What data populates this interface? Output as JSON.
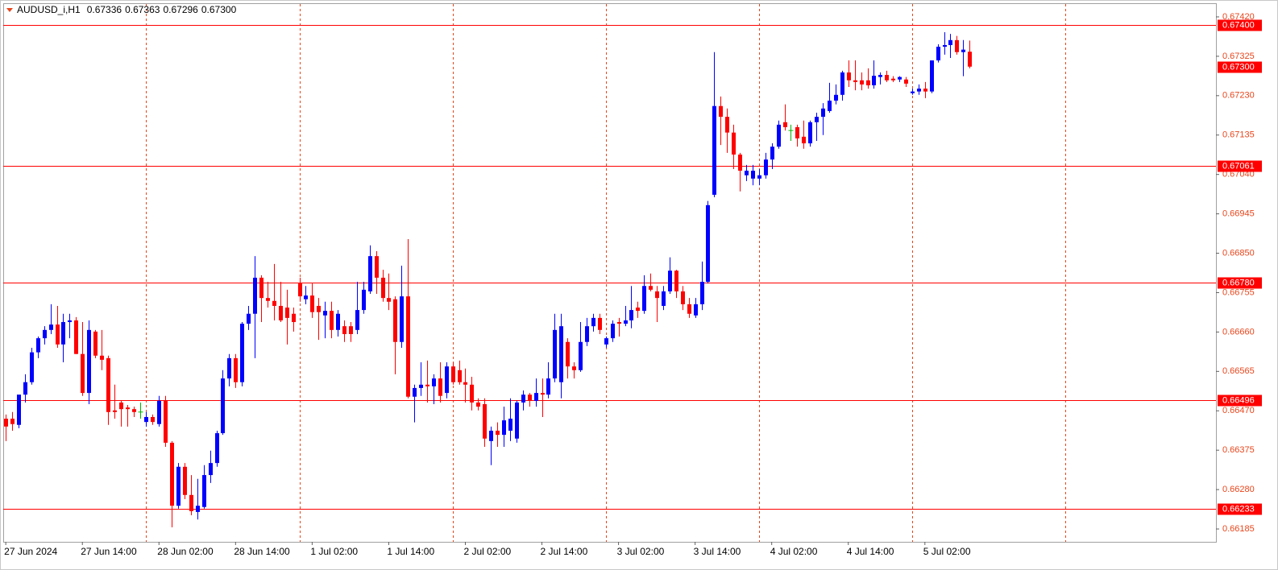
{
  "chart_data": {
    "type": "candlestick",
    "symbol": "AUDUSD_i,H1",
    "quote": [
      {
        "value": 0.67336,
        "label": "0.67336"
      },
      {
        "value": 0.67363,
        "label": "0.67363"
      },
      {
        "value": 0.67296,
        "label": "0.67296"
      },
      {
        "value": 0.673,
        "label": "0.67300"
      }
    ],
    "up_color": "#0000ff",
    "down_color": "#ff0000",
    "doji_color": "#00b400",
    "level_color": "#ff0000",
    "separator_color": "#e8461c",
    "period_separators": true,
    "ylim": [
      0.66154,
      0.67451
    ],
    "xlim": [
      -0.4,
      189.6
    ],
    "yticks": [
      {
        "value": 0.6742,
        "label": "0.67420"
      },
      0.67325,
      {
        "value": 0.6723,
        "label": "0.67230"
      },
      0.67135,
      {
        "value": 0.6704,
        "label": "0.67040"
      },
      0.66945,
      {
        "value": 0.6685,
        "label": "0.66850"
      },
      0.66755,
      {
        "value": 0.6666,
        "label": "0.66660"
      },
      0.66565,
      {
        "value": 0.6647,
        "label": "0.66470"
      },
      0.66375,
      {
        "value": 0.6628,
        "label": "0.66280"
      },
      0.66185
    ],
    "xticks": [
      {
        "value": 0,
        "label": "27 Jun 2024"
      },
      {
        "value": 12,
        "label": "27 Jun 14:00"
      },
      {
        "value": 24,
        "label": "28 Jun 02:00"
      },
      {
        "value": 36,
        "label": "28 Jun 14:00"
      },
      {
        "value": 48,
        "label": "1 Jul 02:00"
      },
      {
        "value": 60,
        "label": "1 Jul 14:00"
      },
      {
        "value": 72,
        "label": "2 Jul 02:00"
      },
      {
        "value": 84,
        "label": "2 Jul 14:00"
      },
      {
        "value": 96,
        "label": "3 Jul 02:00"
      },
      {
        "value": 108,
        "label": "3 Jul 14:00"
      },
      {
        "value": 120,
        "label": "4 Jul 02:00"
      },
      {
        "value": 132,
        "label": "4 Jul 14:00"
      },
      {
        "value": 144,
        "label": "5 Jul 02:00"
      }
    ],
    "levels": [
      {
        "value": 0.674,
        "label": "0.67400"
      },
      {
        "value": 0.673,
        "label": "0.67300"
      },
      {
        "value": 0.67061,
        "label": "0.67061"
      },
      {
        "value": 0.6678,
        "label": "0.66780"
      },
      {
        "value": 0.66496,
        "label": "0.66496"
      },
      {
        "value": 0.66233,
        "label": "0.66233"
      }
    ],
    "level_lines": [
      0,
      2,
      3,
      4,
      5
    ],
    "ohlc": [
      [
        0.66451,
        0.66461,
        0.66397,
        0.66432
      ],
      [
        0.66451,
        0.66467,
        0.66422,
        0.66438
      ],
      [
        0.66436,
        0.665,
        0.66428,
        0.66509
      ],
      [
        0.66509,
        0.66558,
        0.6649,
        0.66539
      ],
      [
        0.66539,
        0.66622,
        0.66533,
        0.66611
      ],
      [
        0.66611,
        0.66649,
        0.66597,
        0.66645
      ],
      [
        0.66645,
        0.66674,
        0.6663,
        0.66665
      ],
      [
        0.66665,
        0.66727,
        0.66655,
        0.66678
      ],
      [
        0.66678,
        0.66723,
        0.66622,
        0.6663
      ],
      [
        0.6663,
        0.66704,
        0.66587,
        0.66684
      ],
      [
        0.66684,
        0.66704,
        0.66645,
        0.66688
      ],
      [
        0.66688,
        0.66696,
        0.66607,
        0.66607
      ],
      [
        0.66607,
        0.66684,
        0.66506,
        0.66513
      ],
      [
        0.66513,
        0.66688,
        0.66486,
        0.66665
      ],
      [
        0.66661,
        0.66665,
        0.66597,
        0.66603
      ],
      [
        0.66603,
        0.66665,
        0.66568,
        0.66593
      ],
      [
        0.66597,
        0.66603,
        0.66436,
        0.66467
      ],
      [
        0.66471,
        0.66533,
        0.66451,
        0.66467
      ],
      [
        0.6649,
        0.66494,
        0.66432,
        0.66474
      ],
      [
        0.66478,
        0.66484,
        0.66432,
        0.66474
      ],
      [
        0.66474,
        0.6648,
        0.66455,
        0.66467
      ],
      [
        0.66467,
        0.6649,
        0.66451,
        0.66467
      ],
      [
        0.66443,
        0.66467,
        0.66432,
        0.66455
      ],
      [
        0.66455,
        0.66461,
        0.66436,
        0.66443
      ],
      [
        0.66438,
        0.66506,
        0.66432,
        0.66494
      ],
      [
        0.66494,
        0.66506,
        0.66383,
        0.66393
      ],
      [
        0.66393,
        0.66397,
        0.66189,
        0.66241
      ],
      [
        0.66241,
        0.66344,
        0.66234,
        0.66335
      ],
      [
        0.66335,
        0.66344,
        0.66257,
        0.66267
      ],
      [
        0.66267,
        0.66315,
        0.66218,
        0.66228
      ],
      [
        0.66226,
        0.66306,
        0.66208,
        0.66241
      ],
      [
        0.66238,
        0.66339,
        0.66234,
        0.66315
      ],
      [
        0.66315,
        0.66374,
        0.66296,
        0.66344
      ],
      [
        0.66344,
        0.66422,
        0.66335,
        0.66416
      ],
      [
        0.66416,
        0.66568,
        0.66412,
        0.66548
      ],
      [
        0.66548,
        0.66607,
        0.66529,
        0.66597
      ],
      [
        0.66597,
        0.66607,
        0.66525,
        0.66539
      ],
      [
        0.66539,
        0.66684,
        0.66529,
        0.6668
      ],
      [
        0.6668,
        0.66723,
        0.66665,
        0.66704
      ],
      [
        0.66704,
        0.66843,
        0.66597,
        0.66791
      ],
      [
        0.66791,
        0.66797,
        0.66684,
        0.66742
      ],
      [
        0.66742,
        0.66781,
        0.66719,
        0.66735
      ],
      [
        0.66735,
        0.66824,
        0.66688,
        0.66723
      ],
      [
        0.66723,
        0.66781,
        0.66684,
        0.66688
      ],
      [
        0.66719,
        0.66762,
        0.6663,
        0.66694
      ],
      [
        0.66704,
        0.66719,
        0.66661,
        0.66684
      ],
      [
        0.66777,
        0.66791,
        0.66733,
        0.66746
      ],
      [
        0.66739,
        0.66771,
        0.66727,
        0.66748
      ],
      [
        0.66748,
        0.66777,
        0.66694,
        0.66708
      ],
      [
        0.66723,
        0.66742,
        0.66641,
        0.66708
      ],
      [
        0.667,
        0.66733,
        0.66645,
        0.66711
      ],
      [
        0.66711,
        0.66733,
        0.66645,
        0.66665
      ],
      [
        0.66665,
        0.66713,
        0.66649,
        0.66704
      ],
      [
        0.66674,
        0.66688,
        0.66636,
        0.66655
      ],
      [
        0.66674,
        0.66684,
        0.66636,
        0.66655
      ],
      [
        0.66665,
        0.66781,
        0.66655,
        0.66713
      ],
      [
        0.66713,
        0.66781,
        0.66704,
        0.66762
      ],
      [
        0.66758,
        0.66869,
        0.66752,
        0.66843
      ],
      [
        0.66843,
        0.66855,
        0.66752,
        0.66791
      ],
      [
        0.66791,
        0.6681,
        0.66733,
        0.66742
      ],
      [
        0.66742,
        0.66801,
        0.66713,
        0.66733
      ],
      [
        0.66739,
        0.66746,
        0.66558,
        0.66636
      ],
      [
        0.66636,
        0.6682,
        0.66622,
        0.66746
      ],
      [
        0.66746,
        0.66884,
        0.665,
        0.66504
      ],
      [
        0.66504,
        0.66533,
        0.66442,
        0.66525
      ],
      [
        0.66525,
        0.66587,
        0.66506,
        0.66533
      ],
      [
        0.66533,
        0.66591,
        0.6649,
        0.66529
      ],
      [
        0.66529,
        0.66558,
        0.66486,
        0.66548
      ],
      [
        0.66548,
        0.66587,
        0.6649,
        0.66506
      ],
      [
        0.66513,
        0.66587,
        0.665,
        0.66577
      ],
      [
        0.66577,
        0.66587,
        0.66533,
        0.66539
      ],
      [
        0.66568,
        0.66591,
        0.66533,
        0.66539
      ],
      [
        0.66539,
        0.66572,
        0.6649,
        0.66533
      ],
      [
        0.66533,
        0.66552,
        0.66471,
        0.6649
      ],
      [
        0.6649,
        0.665,
        0.66471,
        0.6648
      ],
      [
        0.66486,
        0.665,
        0.66383,
        0.66403
      ],
      [
        0.66397,
        0.66432,
        0.66339,
        0.66422
      ],
      [
        0.66422,
        0.66442,
        0.66383,
        0.66412
      ],
      [
        0.66412,
        0.6648,
        0.66383,
        0.66447
      ],
      [
        0.66422,
        0.665,
        0.66397,
        0.66451
      ],
      [
        0.66403,
        0.66494,
        0.66393,
        0.6649
      ],
      [
        0.6649,
        0.66519,
        0.66471,
        0.66509
      ],
      [
        0.66509,
        0.66513,
        0.6648,
        0.66494
      ],
      [
        0.66494,
        0.66548,
        0.6648,
        0.66513
      ],
      [
        0.66513,
        0.66548,
        0.66455,
        0.66509
      ],
      [
        0.66509,
        0.66587,
        0.665,
        0.66548
      ],
      [
        0.66548,
        0.66704,
        0.66539,
        0.66665
      ],
      [
        0.66539,
        0.66704,
        0.665,
        0.66674
      ],
      [
        0.66636,
        0.66645,
        0.66548,
        0.66577
      ],
      [
        0.66577,
        0.66587,
        0.66548,
        0.66568
      ],
      [
        0.66568,
        0.66684,
        0.66564,
        0.66636
      ],
      [
        0.66636,
        0.66694,
        0.66626,
        0.66674
      ],
      [
        0.66674,
        0.66704,
        0.66661,
        0.66694
      ],
      [
        0.66694,
        0.66704,
        0.66655,
        0.66665
      ],
      [
        0.6663,
        0.66649,
        0.66622,
        0.66645
      ],
      [
        0.66645,
        0.66688,
        0.66636,
        0.6668
      ],
      [
        0.66684,
        0.66694,
        0.66649,
        0.6668
      ],
      [
        0.6668,
        0.66723,
        0.66674,
        0.66688
      ],
      [
        0.66688,
        0.66771,
        0.66669,
        0.66713
      ],
      [
        0.66719,
        0.66733,
        0.66694,
        0.66711
      ],
      [
        0.66711,
        0.66797,
        0.66704,
        0.66771
      ],
      [
        0.66771,
        0.66801,
        0.66758,
        0.66762
      ],
      [
        0.66758,
        0.66771,
        0.66684,
        0.66742
      ],
      [
        0.66723,
        0.66771,
        0.66713,
        0.66758
      ],
      [
        0.66758,
        0.6684,
        0.66752,
        0.66808
      ],
      [
        0.66808,
        0.6681,
        0.66742,
        0.66758
      ],
      [
        0.66758,
        0.66771,
        0.66713,
        0.66727
      ],
      [
        0.66727,
        0.66742,
        0.66694,
        0.66704
      ],
      [
        0.667,
        0.66742,
        0.66694,
        0.66727
      ],
      [
        0.66727,
        0.6683,
        0.66713,
        0.66781
      ],
      [
        0.66781,
        0.66976,
        0.66777,
        0.66966
      ],
      [
        0.66991,
        0.67335,
        0.66985,
        0.67205
      ],
      [
        0.67205,
        0.67228,
        0.67111,
        0.67179
      ],
      [
        0.67179,
        0.67199,
        0.67092,
        0.67141
      ],
      [
        0.67141,
        0.6716,
        0.67053,
        0.67088
      ],
      [
        0.67088,
        0.67092,
        0.66999,
        0.67049
      ],
      [
        0.67038,
        0.67063,
        0.67024,
        0.67049
      ],
      [
        0.6703,
        0.67063,
        0.67014,
        0.67049
      ],
      [
        0.6703,
        0.67053,
        0.67014,
        0.67038
      ],
      [
        0.67038,
        0.67092,
        0.6703,
        0.67076
      ],
      [
        0.67076,
        0.67115,
        0.67053,
        0.67107
      ],
      [
        0.67107,
        0.6717,
        0.67102,
        0.6716
      ],
      [
        0.67166,
        0.67209,
        0.67146,
        0.67154
      ],
      [
        0.67146,
        0.6716,
        0.67121,
        0.67146
      ],
      [
        0.67154,
        0.6716,
        0.67107,
        0.67127
      ],
      [
        0.67131,
        0.6717,
        0.67102,
        0.67115
      ],
      [
        0.67115,
        0.6717,
        0.67107,
        0.67166
      ],
      [
        0.67166,
        0.67189,
        0.67121,
        0.67179
      ],
      [
        0.67179,
        0.67212,
        0.67135,
        0.67199
      ],
      [
        0.67193,
        0.67261,
        0.67189,
        0.67218
      ],
      [
        0.67218,
        0.67257,
        0.67209,
        0.67232
      ],
      [
        0.67232,
        0.6729,
        0.67218,
        0.67286
      ],
      [
        0.67286,
        0.67315,
        0.67251,
        0.67267
      ],
      [
        0.67267,
        0.67315,
        0.67243,
        0.67263
      ],
      [
        0.67267,
        0.67286,
        0.67243,
        0.67257
      ],
      [
        0.67267,
        0.67296,
        0.67247,
        0.67255
      ],
      [
        0.67255,
        0.67315,
        0.67247,
        0.67278
      ],
      [
        0.67275,
        0.67286,
        0.67257,
        0.6728
      ],
      [
        0.6728,
        0.6729,
        0.67263,
        0.67267
      ],
      [
        0.67271,
        0.67277,
        0.67263,
        0.67267
      ],
      [
        0.67269,
        0.67277,
        0.67263,
        0.67275
      ],
      [
        0.67269,
        0.67275,
        0.67251,
        0.67259
      ],
      [
        0.67236,
        0.67247,
        0.67232,
        0.6724
      ],
      [
        0.6724,
        0.67257,
        0.67232,
        0.67247
      ],
      [
        0.67247,
        0.67263,
        0.67224,
        0.6724
      ],
      [
        0.6724,
        0.67315,
        0.67236,
        0.67315
      ],
      [
        0.67315,
        0.67354,
        0.6731,
        0.67348
      ],
      [
        0.67348,
        0.67383,
        0.67329,
        0.67352
      ],
      [
        0.67352,
        0.67379,
        0.67321,
        0.67364
      ],
      [
        0.67364,
        0.67374,
        0.67329,
        0.67335
      ],
      [
        0.67335,
        0.67364,
        0.67277,
        0.67341
      ],
      [
        0.67336,
        0.67363,
        0.67296,
        0.673
      ]
    ]
  }
}
